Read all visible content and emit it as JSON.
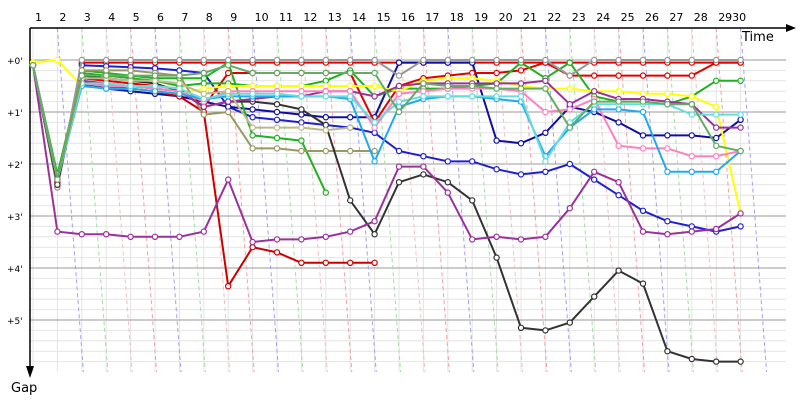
{
  "chart_data": {
    "type": "line",
    "x_axis_title": "Time",
    "y_axis_title": "Gap",
    "laps": [
      "1",
      "2",
      "3",
      "4",
      "5",
      "6",
      "7",
      "8",
      "9",
      "10",
      "11",
      "12",
      "13",
      "14",
      "15",
      "16",
      "17",
      "18",
      "19",
      "20",
      "21",
      "22",
      "23",
      "24",
      "25",
      "26",
      "27",
      "28",
      "29",
      "30"
    ],
    "lap_label_text": [
      "1",
      "2",
      "3",
      "4",
      "5",
      "6",
      "7",
      "8",
      "9",
      "10",
      "11",
      "12",
      "13",
      "14",
      "15",
      "16",
      "17",
      "18",
      "19",
      "20",
      "21",
      "22",
      "23",
      "24",
      "25",
      "26",
      "27",
      "28",
      "2930"
    ],
    "gap_ticks": [
      "+0'",
      "+1'",
      "+2'",
      "+3'",
      "+4'",
      "+5'"
    ],
    "ylim": [
      0,
      5.8
    ],
    "grid": true,
    "series": [
      {
        "color": "#e00000",
        "values": [
          0.1,
          2.45,
          0.05,
          0.05,
          0.05,
          0.05,
          0.05,
          0.05,
          0.05,
          0.05,
          0.05,
          0.05,
          0.05,
          0.05,
          0.05,
          0.05,
          0.05,
          0.05,
          0.05,
          0.05,
          0.05,
          0.05,
          0.05,
          0.05,
          0.05,
          0.05,
          0.05,
          0.05,
          0.05,
          0.05
        ]
      },
      {
        "color": "#2020d0",
        "values": [
          0.1,
          2.35,
          0.1,
          0.12,
          0.14,
          0.16,
          0.2,
          0.25,
          0.9,
          1.1,
          1.15,
          1.2,
          1.25,
          1.3,
          1.4,
          1.75,
          1.85,
          1.95,
          1.95,
          2.1,
          2.2,
          2.15,
          2.0,
          2.3,
          2.6,
          2.9,
          3.1,
          3.2,
          3.3,
          3.2
        ]
      },
      {
        "color": "#1010a0",
        "values": [
          0.1,
          2.3,
          0.45,
          0.55,
          0.6,
          0.65,
          0.7,
          0.8,
          0.9,
          0.95,
          1.0,
          1.05,
          1.1,
          1.1,
          1.1,
          0.05,
          0.05,
          0.05,
          0.05,
          1.55,
          1.6,
          1.4,
          0.9,
          1.0,
          1.2,
          1.45,
          1.45,
          1.45,
          1.5,
          1.15
        ]
      },
      {
        "color": "#cc0000",
        "values": [
          0.1,
          2.3,
          0.4,
          0.5,
          0.55,
          0.6,
          0.7,
          1.0,
          4.35,
          3.6,
          3.7,
          3.9,
          3.9,
          3.9,
          3.9,
          null,
          null,
          null,
          null,
          null,
          null,
          null,
          null,
          null,
          null,
          null,
          null,
          null,
          null,
          null
        ]
      },
      {
        "color": "#e00000",
        "values": [
          0.1,
          2.35,
          0.35,
          0.4,
          0.45,
          0.5,
          0.55,
          0.9,
          0.25,
          0.25,
          0.25,
          0.25,
          0.25,
          0.25,
          1.2,
          0.5,
          0.35,
          0.3,
          0.25,
          0.25,
          0.2,
          0.05,
          0.3,
          0.3,
          0.3,
          0.3,
          0.3,
          0.3,
          0.05,
          0.05
        ]
      },
      {
        "color": "#20b020",
        "values": [
          0.1,
          2.3,
          0.2,
          0.25,
          0.3,
          0.35,
          0.35,
          0.35,
          0.05,
          1.45,
          1.5,
          1.55,
          2.55,
          null,
          null,
          null,
          null,
          null,
          null,
          null,
          null,
          null,
          null,
          null,
          null,
          null,
          null,
          null,
          null,
          null
        ]
      },
      {
        "color": "#20b020",
        "values": [
          0.1,
          2.2,
          0.25,
          0.3,
          0.35,
          0.4,
          0.5,
          0.45,
          0.45,
          0.5,
          0.5,
          0.5,
          0.4,
          0.2,
          0.7,
          0.55,
          0.55,
          0.55,
          0.5,
          0.45,
          0.05,
          0.35,
          0.05,
          0.7,
          0.8,
          0.8,
          0.85,
          0.7,
          0.4,
          0.4
        ]
      },
      {
        "color": "#ffff00",
        "values": [
          0.05,
          0.0,
          0.5,
          0.55,
          0.55,
          0.6,
          0.65,
          0.55,
          0.5,
          0.5,
          0.5,
          0.5,
          0.5,
          0.5,
          0.5,
          0.6,
          0.4,
          0.35,
          0.35,
          0.4,
          0.5,
          0.55,
          0.55,
          0.6,
          0.6,
          0.65,
          0.65,
          0.7,
          0.9,
          2.95
        ]
      },
      {
        "color": "#999999",
        "values": [
          0.1,
          2.45,
          0.0,
          0.0,
          0.0,
          0.0,
          0.0,
          0.0,
          0.0,
          0.0,
          0.0,
          0.0,
          0.0,
          0.0,
          0.0,
          0.3,
          0.0,
          0.0,
          0.0,
          0.0,
          0.0,
          0.0,
          0.3,
          0.0,
          0.0,
          0.0,
          0.0,
          0.0,
          0.0,
          0.0
        ]
      },
      {
        "color": "#999966",
        "values": [
          0.1,
          2.3,
          0.2,
          0.2,
          0.2,
          0.25,
          0.3,
          1.05,
          1.0,
          1.7,
          1.7,
          1.75,
          1.75,
          1.75,
          1.75,
          null,
          null,
          null,
          null,
          null,
          null,
          null,
          null,
          null,
          null,
          null,
          null,
          null,
          null,
          null
        ]
      },
      {
        "color": "#333333",
        "values": [
          0.1,
          2.4,
          0.3,
          0.35,
          0.4,
          0.45,
          0.6,
          0.9,
          0.8,
          0.8,
          0.85,
          0.95,
          1.25,
          2.7,
          3.35,
          2.35,
          2.2,
          2.35,
          2.7,
          3.8,
          5.15,
          5.2,
          5.05,
          4.55,
          4.05,
          4.3,
          5.6,
          5.75,
          5.8,
          5.8
        ]
      },
      {
        "color": "#993399",
        "values": [
          0.1,
          3.3,
          3.35,
          3.35,
          3.4,
          3.4,
          3.4,
          3.3,
          2.3,
          3.5,
          3.45,
          3.45,
          3.4,
          3.3,
          3.1,
          2.05,
          2.05,
          2.55,
          3.45,
          3.4,
          3.45,
          3.4,
          2.85,
          2.15,
          2.35,
          3.3,
          3.35,
          3.3,
          3.25,
          2.95
        ]
      },
      {
        "color": "#993399",
        "values": [
          0.1,
          2.3,
          0.4,
          0.45,
          0.5,
          0.55,
          0.6,
          0.9,
          0.8,
          0.75,
          0.7,
          0.7,
          0.6,
          0.6,
          0.7,
          0.5,
          0.45,
          0.45,
          0.45,
          0.45,
          0.45,
          0.4,
          0.85,
          0.6,
          0.75,
          0.75,
          0.8,
          0.85,
          1.3,
          1.3
        ]
      },
      {
        "color": "#ff80c0",
        "values": [
          0.1,
          2.3,
          0.45,
          0.5,
          0.5,
          0.55,
          0.6,
          0.8,
          0.6,
          0.6,
          0.6,
          0.6,
          0.6,
          0.6,
          1.3,
          0.65,
          0.6,
          0.55,
          0.55,
          0.55,
          0.6,
          1.0,
          0.95,
          0.75,
          1.65,
          1.7,
          1.7,
          1.85,
          1.85,
          1.75
        ]
      },
      {
        "color": "#22aaee",
        "values": [
          0.1,
          2.3,
          0.5,
          0.55,
          0.55,
          0.6,
          0.65,
          0.75,
          0.7,
          0.7,
          0.7,
          0.7,
          0.7,
          0.75,
          1.95,
          0.9,
          0.75,
          0.7,
          0.7,
          0.75,
          0.8,
          1.85,
          1.3,
          0.95,
          0.95,
          1.0,
          2.15,
          2.15,
          2.15,
          1.75
        ]
      },
      {
        "color": "#66dddd",
        "values": [
          0.1,
          2.3,
          0.45,
          0.45,
          0.5,
          0.5,
          0.55,
          0.75,
          0.65,
          0.65,
          0.65,
          0.7,
          0.7,
          0.7,
          1.2,
          0.8,
          0.7,
          0.7,
          0.7,
          0.7,
          0.7,
          1.95,
          1.2,
          0.85,
          0.85,
          0.85,
          0.85,
          1.05,
          1.05,
          1.05
        ]
      },
      {
        "color": "#bbbb88",
        "values": [
          0.1,
          2.3,
          0.35,
          0.35,
          0.4,
          0.4,
          0.45,
          0.65,
          0.6,
          1.3,
          1.3,
          1.3,
          1.35,
          1.3,
          null,
          null,
          null,
          null,
          null,
          null,
          null,
          null,
          null,
          null,
          null,
          null,
          null,
          null,
          null,
          null
        ]
      },
      {
        "color": "#66aa66",
        "values": [
          0.1,
          2.3,
          0.3,
          0.3,
          0.3,
          0.3,
          0.3,
          0.25,
          0.1,
          0.25,
          0.25,
          0.25,
          0.25,
          0.25,
          0.25,
          1.0,
          0.45,
          0.5,
          0.5,
          0.55,
          0.55,
          0.55,
          1.3,
          0.8,
          0.8,
          0.8,
          0.85,
          0.85,
          1.65,
          1.75
        ]
      }
    ]
  }
}
